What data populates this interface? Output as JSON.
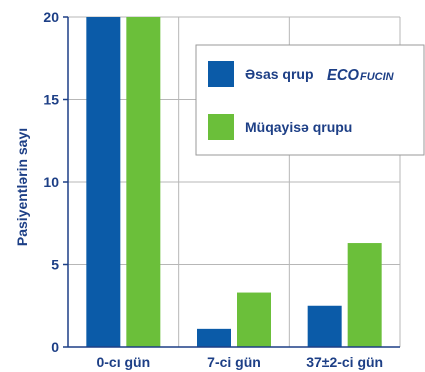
{
  "chart_data": {
    "type": "bar",
    "categories": [
      "0-cı gün",
      "7-ci gün",
      "37±2-ci gün"
    ],
    "series": [
      {
        "name": "Əsas qrup",
        "brand": "ECOFUCIN",
        "brand_prefix": "ECO",
        "brand_suffix": "FUCIN",
        "color": "#0b5ba8",
        "values": [
          20,
          1.1,
          2.5
        ]
      },
      {
        "name": "Müqayisə qrupu",
        "color": "#6bbf3a",
        "values": [
          20,
          3.3,
          6.3
        ]
      }
    ],
    "ylabel": "Pasiyentlərin sayı",
    "xlabel": "",
    "ylim": [
      0,
      20
    ],
    "yticks": [
      0,
      5,
      10,
      15,
      20
    ],
    "grid": true,
    "legend_position": "top-right",
    "colors": {
      "text": "#1d3f86",
      "axis": "#1d3f86",
      "grid": "#b7b7b7"
    }
  }
}
